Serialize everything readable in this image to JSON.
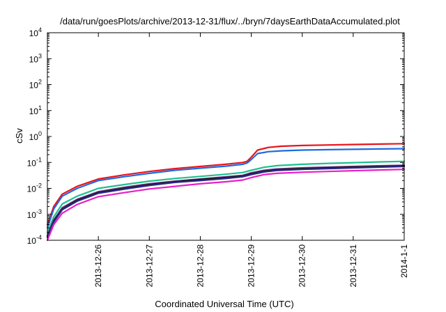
{
  "chart_data": {
    "type": "line",
    "title": "/data/run/goesPlots/archive/2013-12-31/flux/../bryn/7daysEarthDataAccumulated.plot",
    "xlabel": "Coordinated Universal Time (UTC)",
    "ylabel": "cSv",
    "yscale": "log",
    "ylim": [
      0.0001,
      10000
    ],
    "xlim": [
      "2013-12-25 00:00",
      "2014-01-01 00:00"
    ],
    "y_ticks": [
      {
        "base": "10",
        "exp": "-4",
        "value": 0.0001
      },
      {
        "base": "10",
        "exp": "-3",
        "value": 0.001
      },
      {
        "base": "10",
        "exp": "-2",
        "value": 0.01
      },
      {
        "base": "10",
        "exp": "-1",
        "value": 0.1
      },
      {
        "base": "10",
        "exp": "0",
        "value": 1
      },
      {
        "base": "10",
        "exp": "1",
        "value": 10
      },
      {
        "base": "10",
        "exp": "2",
        "value": 100
      },
      {
        "base": "10",
        "exp": "3",
        "value": 1000
      },
      {
        "base": "10",
        "exp": "4",
        "value": 10000
      }
    ],
    "x_ticks": [
      {
        "label": "2013-12-26",
        "value": "2013-12-26 00:00"
      },
      {
        "label": "2013-12-27",
        "value": "2013-12-27 00:00"
      },
      {
        "label": "2013-12-28",
        "value": "2013-12-28 00:00"
      },
      {
        "label": "2013-12-29",
        "value": "2013-12-29 00:00"
      },
      {
        "label": "2013-12-30",
        "value": "2013-12-30 00:00"
      },
      {
        "label": "2013-12-31",
        "value": "2013-12-31 00:00"
      },
      {
        "label": "2014-1-1",
        "value": "2014-01-01 00:00"
      }
    ],
    "grid": false,
    "legend": "none",
    "series": [
      {
        "color": "#e8141b",
        "x": [
          "2013-12-25 00:00",
          "2013-12-25 03:00",
          "2013-12-25 07:00",
          "2013-12-25 14:00",
          "2013-12-26 00:00",
          "2013-12-26 12:00",
          "2013-12-27 00:00",
          "2013-12-27 12:00",
          "2013-12-28 00:00",
          "2013-12-28 12:00",
          "2013-12-28 20:00",
          "2013-12-28 22:00",
          "2013-12-29 00:00",
          "2013-12-29 03:00",
          "2013-12-29 08:00",
          "2013-12-29 14:00",
          "2013-12-30 00:00",
          "2013-12-30 12:00",
          "2013-12-31 00:00",
          "2013-12-31 12:00",
          "2014-01-01 00:00"
        ],
        "y": [
          0.0004,
          0.002,
          0.006,
          0.012,
          0.023,
          0.033,
          0.045,
          0.058,
          0.07,
          0.085,
          0.1,
          0.11,
          0.16,
          0.3,
          0.38,
          0.42,
          0.45,
          0.47,
          0.49,
          0.51,
          0.53
        ]
      },
      {
        "color": "#1e6ae0",
        "x": [
          "2013-12-25 00:00",
          "2013-12-25 03:00",
          "2013-12-25 07:00",
          "2013-12-25 14:00",
          "2013-12-26 00:00",
          "2013-12-26 12:00",
          "2013-12-27 00:00",
          "2013-12-27 12:00",
          "2013-12-28 00:00",
          "2013-12-28 12:00",
          "2013-12-28 20:00",
          "2013-12-28 22:00",
          "2013-12-29 00:00",
          "2013-12-29 03:00",
          "2013-12-29 08:00",
          "2013-12-29 14:00",
          "2013-12-30 00:00",
          "2013-12-30 12:00",
          "2013-12-31 00:00",
          "2013-12-31 12:00",
          "2014-01-01 00:00"
        ],
        "y": [
          0.0003,
          0.0016,
          0.005,
          0.01,
          0.02,
          0.028,
          0.038,
          0.05,
          0.06,
          0.072,
          0.085,
          0.095,
          0.13,
          0.22,
          0.26,
          0.28,
          0.3,
          0.31,
          0.32,
          0.33,
          0.34
        ]
      },
      {
        "color": "#1fbf8f",
        "x": [
          "2013-12-25 00:00",
          "2013-12-25 03:00",
          "2013-12-25 07:00",
          "2013-12-25 14:00",
          "2013-12-26 00:00",
          "2013-12-26 12:00",
          "2013-12-27 00:00",
          "2013-12-27 12:00",
          "2013-12-28 00:00",
          "2013-12-28 12:00",
          "2013-12-28 20:00",
          "2013-12-29 00:00",
          "2013-12-29 06:00",
          "2013-12-29 12:00",
          "2013-12-30 00:00",
          "2013-12-30 12:00",
          "2013-12-31 00:00",
          "2013-12-31 12:00",
          "2014-01-01 00:00"
        ],
        "y": [
          0.0002,
          0.0008,
          0.0025,
          0.005,
          0.01,
          0.014,
          0.019,
          0.024,
          0.029,
          0.035,
          0.041,
          0.05,
          0.065,
          0.075,
          0.085,
          0.092,
          0.098,
          0.105,
          0.11
        ]
      },
      {
        "color": "#6f3a8f",
        "x": [
          "2013-12-25 00:00",
          "2013-12-25 03:00",
          "2013-12-25 07:00",
          "2013-12-25 14:00",
          "2013-12-26 00:00",
          "2013-12-26 12:00",
          "2013-12-27 00:00",
          "2013-12-27 12:00",
          "2013-12-28 00:00",
          "2013-12-28 12:00",
          "2013-12-28 20:00",
          "2013-12-29 00:00",
          "2013-12-29 06:00",
          "2013-12-29 12:00",
          "2013-12-30 00:00",
          "2013-12-30 12:00",
          "2013-12-31 00:00",
          "2013-12-31 12:00",
          "2014-01-01 00:00"
        ],
        "y": [
          0.00015,
          0.0006,
          0.0018,
          0.0038,
          0.0075,
          0.011,
          0.015,
          0.019,
          0.023,
          0.028,
          0.032,
          0.04,
          0.05,
          0.056,
          0.062,
          0.066,
          0.07,
          0.074,
          0.078
        ]
      },
      {
        "color": "#1a1a1a",
        "x": [
          "2013-12-25 00:00",
          "2013-12-25 03:00",
          "2013-12-25 07:00",
          "2013-12-25 14:00",
          "2013-12-26 00:00",
          "2013-12-26 12:00",
          "2013-12-27 00:00",
          "2013-12-27 12:00",
          "2013-12-28 00:00",
          "2013-12-28 12:00",
          "2013-12-28 20:00",
          "2013-12-29 00:00",
          "2013-12-29 06:00",
          "2013-12-29 12:00",
          "2013-12-30 00:00",
          "2013-12-30 12:00",
          "2013-12-31 00:00",
          "2013-12-31 12:00",
          "2014-01-01 00:00"
        ],
        "y": [
          0.00014,
          0.00055,
          0.0016,
          0.0035,
          0.007,
          0.01,
          0.014,
          0.018,
          0.022,
          0.026,
          0.03,
          0.037,
          0.046,
          0.052,
          0.058,
          0.062,
          0.066,
          0.07,
          0.074
        ]
      },
      {
        "color": "#2a2a8a",
        "x": [
          "2013-12-25 00:00",
          "2013-12-25 03:00",
          "2013-12-25 07:00",
          "2013-12-25 14:00",
          "2013-12-26 00:00",
          "2013-12-26 12:00",
          "2013-12-27 00:00",
          "2013-12-27 12:00",
          "2013-12-28 00:00",
          "2013-12-28 12:00",
          "2013-12-28 20:00",
          "2013-12-29 00:00",
          "2013-12-29 06:00",
          "2013-12-29 12:00",
          "2013-12-30 00:00",
          "2013-12-30 12:00",
          "2013-12-31 00:00",
          "2013-12-31 12:00",
          "2014-01-01 00:00"
        ],
        "y": [
          0.00013,
          0.0005,
          0.0015,
          0.0032,
          0.0065,
          0.0093,
          0.013,
          0.017,
          0.02,
          0.024,
          0.028,
          0.034,
          0.043,
          0.049,
          0.054,
          0.058,
          0.062,
          0.066,
          0.07
        ]
      },
      {
        "color": "#e81fc8",
        "x": [
          "2013-12-25 00:00",
          "2013-12-25 03:00",
          "2013-12-25 07:00",
          "2013-12-25 14:00",
          "2013-12-26 00:00",
          "2013-12-26 12:00",
          "2013-12-27 00:00",
          "2013-12-27 12:00",
          "2013-12-28 00:00",
          "2013-12-28 12:00",
          "2013-12-28 20:00",
          "2013-12-29 00:00",
          "2013-12-29 06:00",
          "2013-12-29 12:00",
          "2013-12-30 00:00",
          "2013-12-30 12:00",
          "2013-12-31 00:00",
          "2013-12-31 12:00",
          "2014-01-01 00:00"
        ],
        "y": [
          0.0001,
          0.0004,
          0.0011,
          0.0024,
          0.0048,
          0.0068,
          0.0095,
          0.012,
          0.015,
          0.018,
          0.021,
          0.026,
          0.034,
          0.038,
          0.042,
          0.045,
          0.048,
          0.051,
          0.054
        ]
      }
    ]
  }
}
